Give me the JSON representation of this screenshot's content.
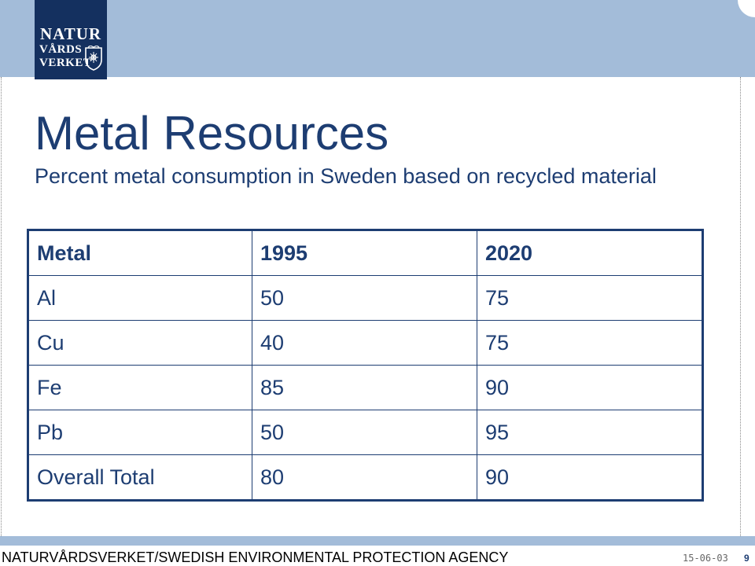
{
  "logo": {
    "line1": "NATUR",
    "line2": "VÅRDS",
    "line3": "VERKET",
    "background": "#14305f"
  },
  "slide": {
    "title": "Metal Resources",
    "subtitle": "Percent metal consumption in Sweden based on recycled material"
  },
  "table": {
    "headers": [
      "Metal",
      "1995",
      "2020"
    ],
    "rows": [
      [
        "Al",
        "50",
        "75"
      ],
      [
        "Cu",
        "40",
        "75"
      ],
      [
        "Fe",
        "85",
        "90"
      ],
      [
        "Pb",
        "50",
        "95"
      ],
      [
        "Overall Total",
        "80",
        "90"
      ]
    ]
  },
  "footer": {
    "agency": "NATURVÅRDSVERKET/SWEDISH ENVIRONMENTAL PROTECTION AGENCY",
    "date": "15-06-03",
    "page": "9"
  },
  "colors": {
    "band": "#a3bcd9",
    "text": "#1d3d72"
  }
}
